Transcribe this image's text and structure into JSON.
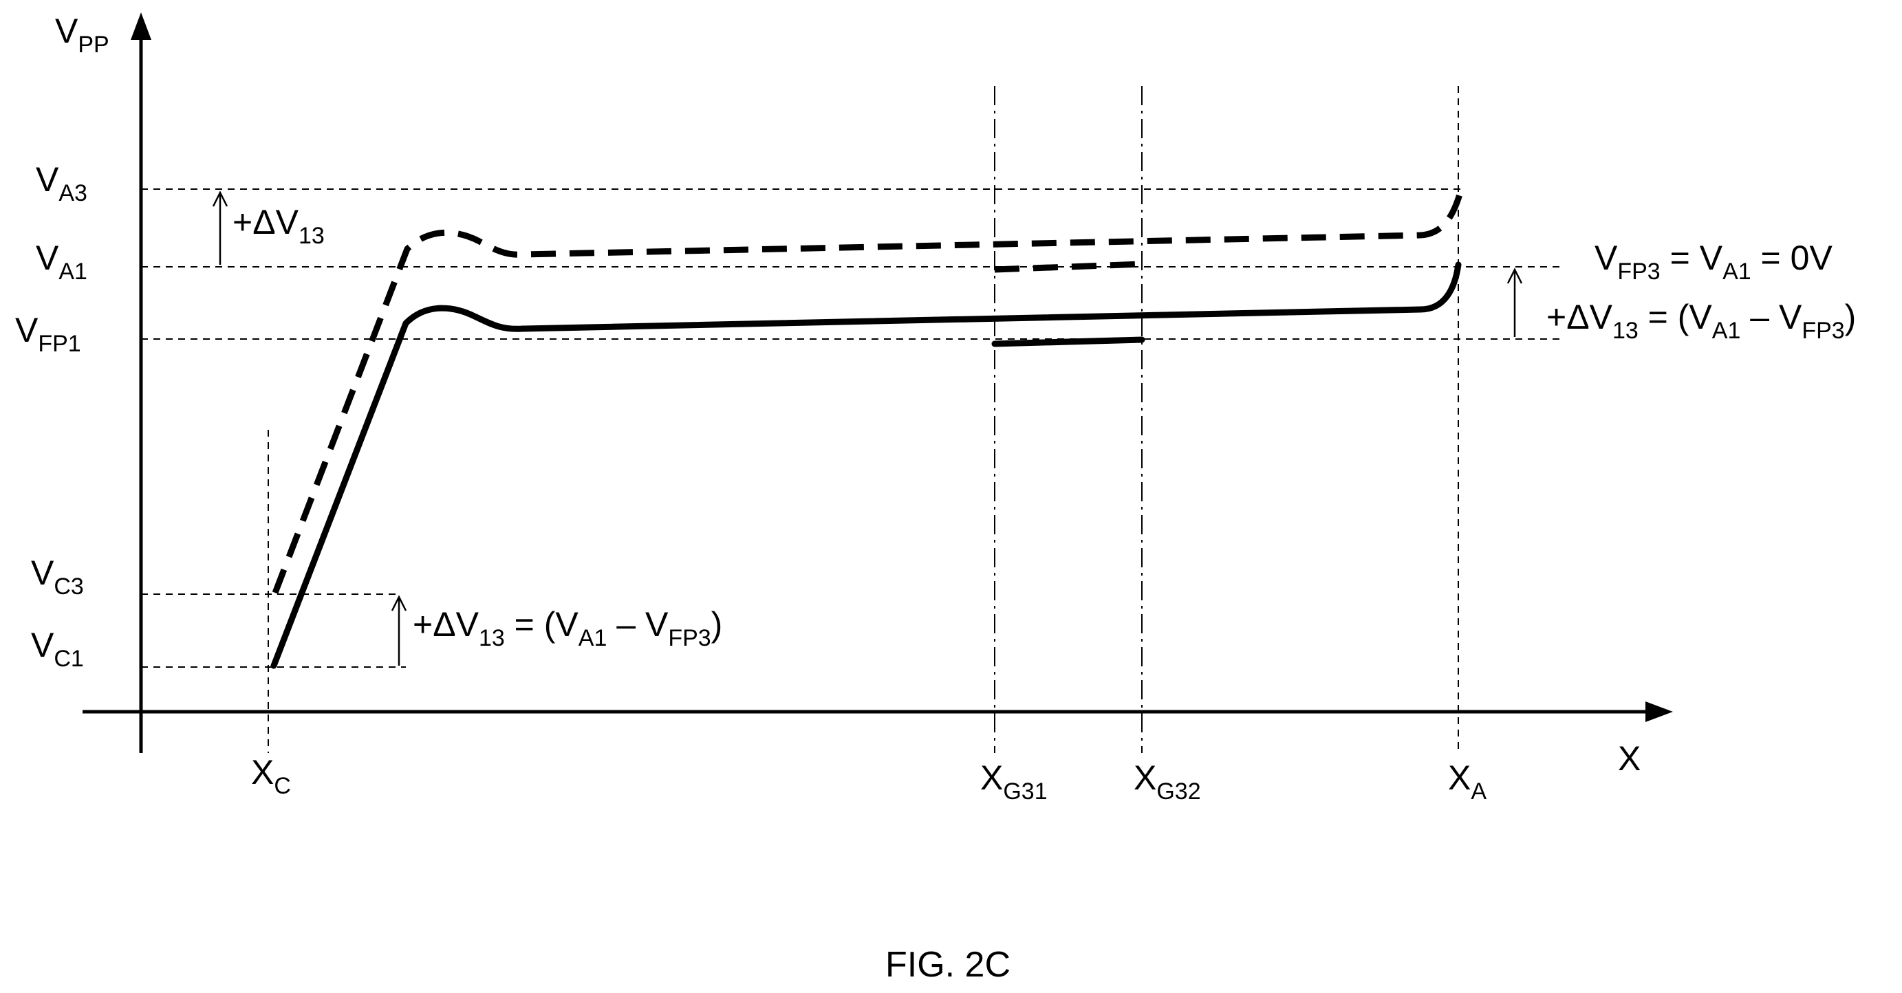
{
  "axes": {
    "y": {
      "base": "V",
      "sub": "PP"
    },
    "x": {
      "base": "X"
    }
  },
  "y_labels": [
    {
      "key": "va3",
      "base": "V",
      "sub": "A3"
    },
    {
      "key": "va1",
      "base": "V",
      "sub": "A1"
    },
    {
      "key": "vfp1",
      "base": "V",
      "sub": "FP1"
    },
    {
      "key": "vc3",
      "base": "V",
      "sub": "C3"
    },
    {
      "key": "vc1",
      "base": "V",
      "sub": "C1"
    }
  ],
  "x_labels": [
    {
      "key": "xc",
      "base": "X",
      "sub": "C"
    },
    {
      "key": "xg31",
      "base": "X",
      "sub": "G31"
    },
    {
      "key": "xg32",
      "base": "X",
      "sub": "G32"
    },
    {
      "key": "xa",
      "base": "X",
      "sub": "A"
    }
  ],
  "annotations": {
    "delta_top": {
      "p1": "+ΔV",
      "s1": "13"
    },
    "equation_right": {
      "line1": {
        "p1": "V",
        "s1": "FP3",
        "p2": " = V",
        "s2": "A1",
        "p3": " = 0V"
      },
      "line2": {
        "p1": "+ΔV",
        "s1": "13",
        "p2": " = (V",
        "s2": "A1",
        "p3": " – V",
        "s3": "FP3",
        "p4": ")"
      }
    },
    "equation_bottom": {
      "p1": "+ΔV",
      "s1": "13",
      "p2": " = (V",
      "s2": "A1",
      "p3": " – V",
      "s3": "FP3",
      "p4": ")"
    }
  },
  "caption": "FIG. 2C"
}
